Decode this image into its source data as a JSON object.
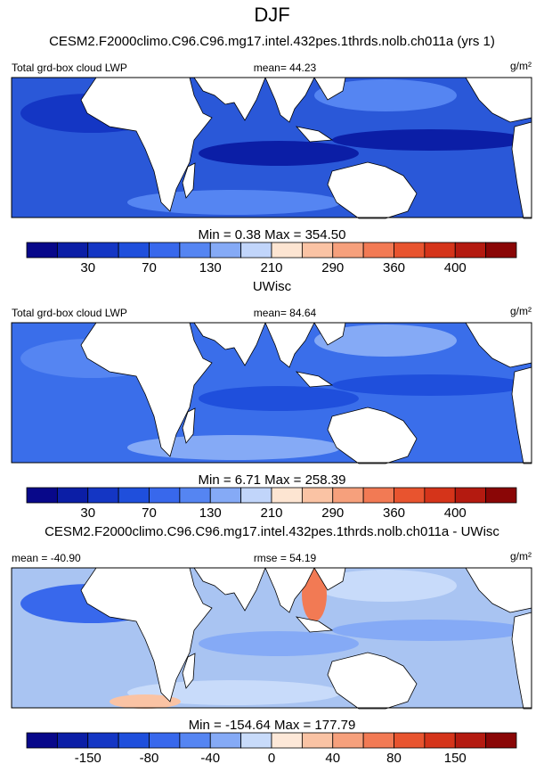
{
  "title": "DJF",
  "panels": [
    {
      "title": "CESM2.F2000climo.C96.C96.mg17.intel.432pes.1thrds.nolb.ch011a (yrs 1)",
      "left_label": "Total grd-box cloud LWP",
      "center_label": "mean=  44.23",
      "right_label": "g/m²",
      "stats": "Min =   0.38 Max = 354.50",
      "colorbar": {
        "labels": [
          "30",
          "70",
          "130",
          "210",
          "290",
          "360",
          "400"
        ],
        "colors": [
          "#08088a",
          "#0b1ea6",
          "#1436c4",
          "#1f4fdc",
          "#3868ec",
          "#5585f2",
          "#85aaf6",
          "#c1d5fa",
          "#fde5d2",
          "#fac3a4",
          "#f6a07c",
          "#f27a54",
          "#e8542f",
          "#d5341a",
          "#b41a10",
          "#8a0606"
        ]
      }
    },
    {
      "title": "UWisc",
      "left_label": "Total grd-box cloud LWP",
      "center_label": "mean=  84.64",
      "right_label": "g/m²",
      "stats": "Min =   6.71 Max = 258.39",
      "colorbar": {
        "labels": [
          "30",
          "70",
          "130",
          "210",
          "290",
          "360",
          "400"
        ],
        "colors": [
          "#08088a",
          "#0b1ea6",
          "#1436c4",
          "#1f4fdc",
          "#3868ec",
          "#5585f2",
          "#85aaf6",
          "#c1d5fa",
          "#fde5d2",
          "#fac3a4",
          "#f6a07c",
          "#f27a54",
          "#e8542f",
          "#d5341a",
          "#b41a10",
          "#8a0606"
        ]
      }
    },
    {
      "title": "CESM2.F2000climo.C96.C96.mg17.intel.432pes.1thrds.nolb.ch011a - UWisc",
      "left_label": "mean = -40.90",
      "center_label": "rmse =  54.19",
      "right_label": "g/m²",
      "stats": "Min = -154.64 Max = 177.79",
      "colorbar": {
        "labels": [
          "-150",
          "-80",
          "-40",
          "0",
          "40",
          "80",
          "150"
        ],
        "colors": [
          "#08088a",
          "#0b1ea6",
          "#1436c4",
          "#1f4fdc",
          "#3868ec",
          "#5585f2",
          "#85aaf6",
          "#c8dbfa",
          "#fde8d8",
          "#fac3a4",
          "#f6a07c",
          "#f27a54",
          "#e8542f",
          "#d5341a",
          "#b41a10",
          "#8a0606"
        ]
      }
    }
  ]
}
